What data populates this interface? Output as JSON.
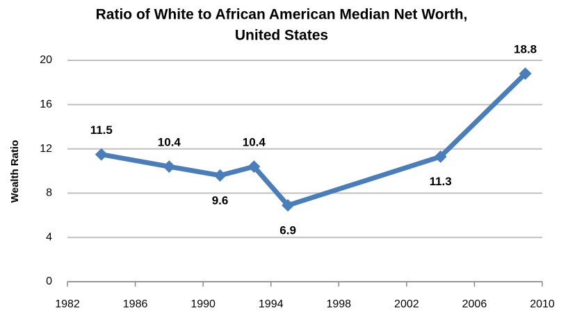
{
  "chart_data": {
    "type": "line",
    "title": [
      "Ratio of White to African American Median Net Worth,",
      "United States"
    ],
    "ylabel": "Wealth Ratio",
    "x": [
      1984,
      1988,
      1991,
      1993,
      1995,
      2004,
      2009
    ],
    "series": [
      {
        "name": "Wealth Ratio",
        "color": "#4a7ebb",
        "values": [
          11.5,
          10.4,
          9.6,
          10.4,
          6.9,
          11.3,
          18.8
        ]
      }
    ],
    "xlim": [
      1982,
      2010
    ],
    "xticks": [
      1982,
      1986,
      1990,
      1994,
      1998,
      2002,
      2006,
      2010
    ],
    "ylim": [
      0,
      20
    ],
    "yticks": [
      0,
      4,
      8,
      12,
      16,
      20
    ],
    "grid": true
  }
}
